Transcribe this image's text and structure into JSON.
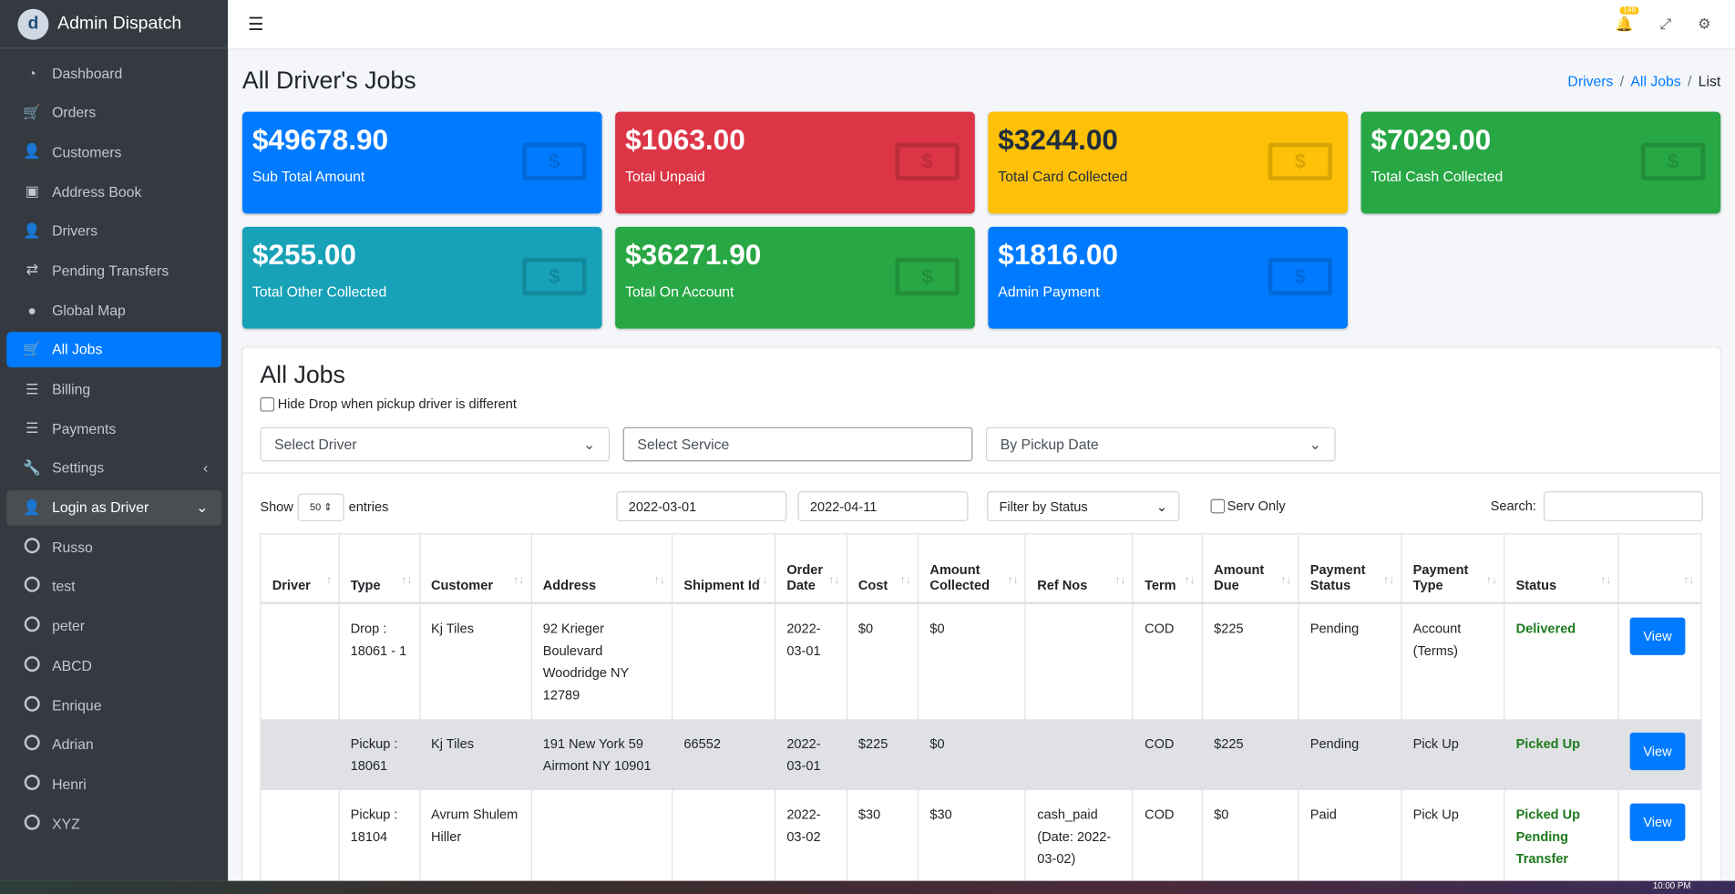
{
  "brand": "Admin Dispatch",
  "sidebar": {
    "items": [
      {
        "label": "Dashboard",
        "icon": "◔"
      },
      {
        "label": "Orders",
        "icon": "🛒"
      },
      {
        "label": "Customers",
        "icon": "👤"
      },
      {
        "label": "Address Book",
        "icon": "▣"
      },
      {
        "label": "Drivers",
        "icon": "👤"
      },
      {
        "label": "Pending Transfers",
        "icon": "⇄"
      },
      {
        "label": "Global Map",
        "icon": "●"
      },
      {
        "label": "All Jobs",
        "icon": "🛒"
      },
      {
        "label": "Billing",
        "icon": "☰"
      },
      {
        "label": "Payments",
        "icon": "☰"
      },
      {
        "label": "Settings",
        "icon": "🔧"
      },
      {
        "label": "Login as Driver",
        "icon": "👤"
      }
    ],
    "drivers": [
      "Russo",
      "test",
      "peter",
      "ABCD",
      "Enrique",
      "Adrian",
      "Henri",
      "XYZ"
    ]
  },
  "topbar": {
    "notifications": "148"
  },
  "page": {
    "title": "All Driver's Jobs",
    "breadcrumb": [
      "Drivers",
      "All Jobs",
      "List"
    ]
  },
  "boxes": [
    {
      "value": "$49678.90",
      "label": "Sub Total Amount",
      "color": "#007bff"
    },
    {
      "value": "$1063.00",
      "label": "Total Unpaid",
      "color": "#dc3545"
    },
    {
      "value": "$3244.00",
      "label": "Total Card Collected",
      "color": "#ffc107"
    },
    {
      "value": "$7029.00",
      "label": "Total Cash Collected",
      "color": "#28a745"
    },
    {
      "value": "$255.00",
      "label": "Total Other Collected",
      "color": "#17a2b8"
    },
    {
      "value": "$36271.90",
      "label": "Total On Account",
      "color": "#28a745"
    },
    {
      "value": "$1816.00",
      "label": "Admin Payment",
      "color": "#007bff"
    }
  ],
  "jobs": {
    "title": "All Jobs",
    "hide_drop": "Hide Drop when pickup driver is different",
    "select_driver": "Select Driver",
    "select_service": "Select Service",
    "date_mode": "By Pickup Date",
    "show": "Show",
    "entries_value": "50",
    "entries": "entries",
    "date_from": "2022-03-01",
    "date_to": "2022-04-11",
    "status_filter": "Filter by Status",
    "serv_only": "Serv Only",
    "search": "Search:",
    "columns": [
      "Driver",
      "Type",
      "Customer",
      "Address",
      "Shipment Id",
      "Order Date",
      "Cost",
      "Amount Collected",
      "Ref Nos",
      "Term",
      "Amount Due",
      "Payment Status",
      "Payment Type",
      "Status",
      ""
    ],
    "view": "View",
    "rows": [
      [
        "",
        "Drop : 18061 - 1",
        "Kj Tiles",
        "92 Krieger Boulevard Woodridge NY 12789",
        "",
        "2022-03-01",
        "$0",
        "$0",
        "",
        "COD",
        "$225",
        "Pending",
        "Account (Terms)",
        "Delivered"
      ],
      [
        "",
        "Pickup : 18061",
        "Kj Tiles",
        "191 New York 59 Airmont NY 10901",
        "66552",
        "2022-03-01",
        "$225",
        "$0",
        "",
        "COD",
        "$225",
        "Pending",
        "Pick Up",
        "Picked Up"
      ],
      [
        "",
        "Pickup : 18104",
        "Avrum Shulem Hiller",
        "",
        "",
        "2022-03-02",
        "$30",
        "$30",
        "cash_paid (Date: 2022-03-02)",
        "COD",
        "$0",
        "Paid",
        "Pick Up",
        "Picked Up Pending Transfer"
      ]
    ]
  },
  "taskbar": {
    "time": "10:00 PM"
  }
}
